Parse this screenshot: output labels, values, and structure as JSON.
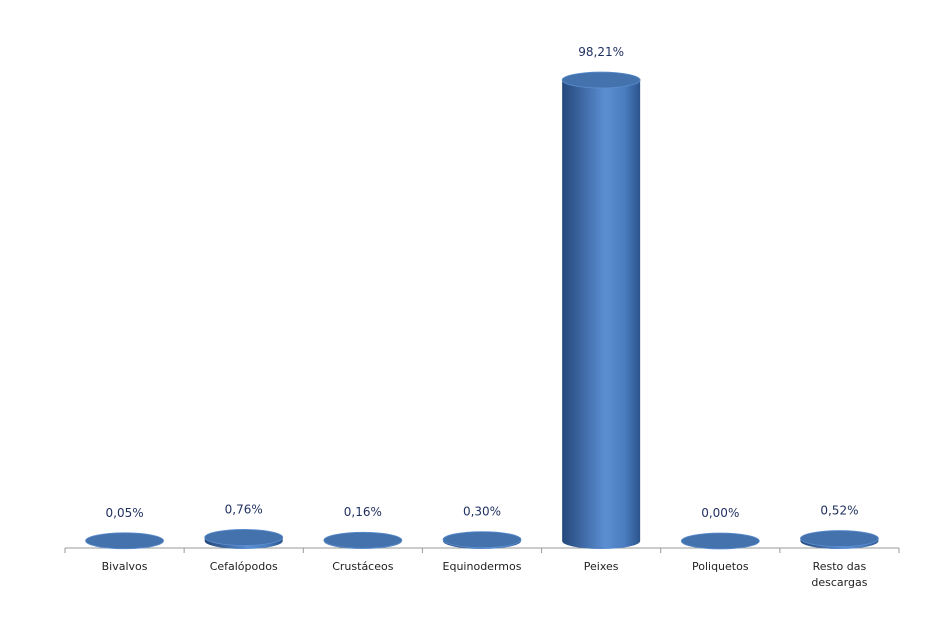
{
  "chart_data": {
    "type": "bar",
    "categories": [
      "Bivalvos",
      "Cefalópodos",
      "Crustáceos",
      "Equinodermos",
      "Peixes",
      "Poliquetos",
      "Resto das descargas"
    ],
    "values": [
      0.05,
      0.76,
      0.16,
      0.3,
      98.21,
      0.0,
      0.52
    ],
    "value_labels": [
      "0,05%",
      "0,76%",
      "0,16%",
      "0,30%",
      "98,21%",
      "0,00%",
      "0,52%"
    ],
    "color": "#4f81bd"
  }
}
